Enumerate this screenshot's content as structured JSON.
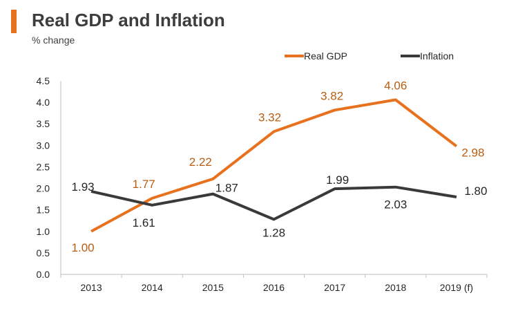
{
  "header": {
    "title": "Real GDP and Inflation",
    "subtitle": "% change"
  },
  "colors": {
    "accent": "#e8711d",
    "real_gdp": "#e8711d",
    "inflation": "#3a3a3a"
  },
  "chart_data": {
    "type": "line",
    "title": "Real GDP and Inflation",
    "subtitle": "% change",
    "xlabel": "",
    "ylabel": "",
    "categories": [
      "2013",
      "2014",
      "2015",
      "2016",
      "2017",
      "2018",
      "2019 (f)"
    ],
    "ylim": [
      0,
      4.5
    ],
    "yticks": [
      "0.0",
      "0.5",
      "1.0",
      "1.5",
      "2.0",
      "2.5",
      "3.0",
      "3.5",
      "4.0",
      "4.5"
    ],
    "grid": false,
    "legend_position": "top-right",
    "series": [
      {
        "name": "Real GDP",
        "color": "#e8711d",
        "values": [
          1.0,
          1.77,
          2.22,
          3.32,
          3.82,
          4.06,
          2.98
        ],
        "labels": [
          "1.00",
          "1.77",
          "2.22",
          "3.32",
          "3.82",
          "4.06",
          "2.98"
        ]
      },
      {
        "name": "Inflation",
        "color": "#3a3a3a",
        "values": [
          1.93,
          1.61,
          1.87,
          1.28,
          1.99,
          2.03,
          1.8
        ],
        "labels": [
          "1.93",
          "1.61",
          "1.87",
          "1.28",
          "1.99",
          "2.03",
          "1.80"
        ]
      }
    ]
  }
}
